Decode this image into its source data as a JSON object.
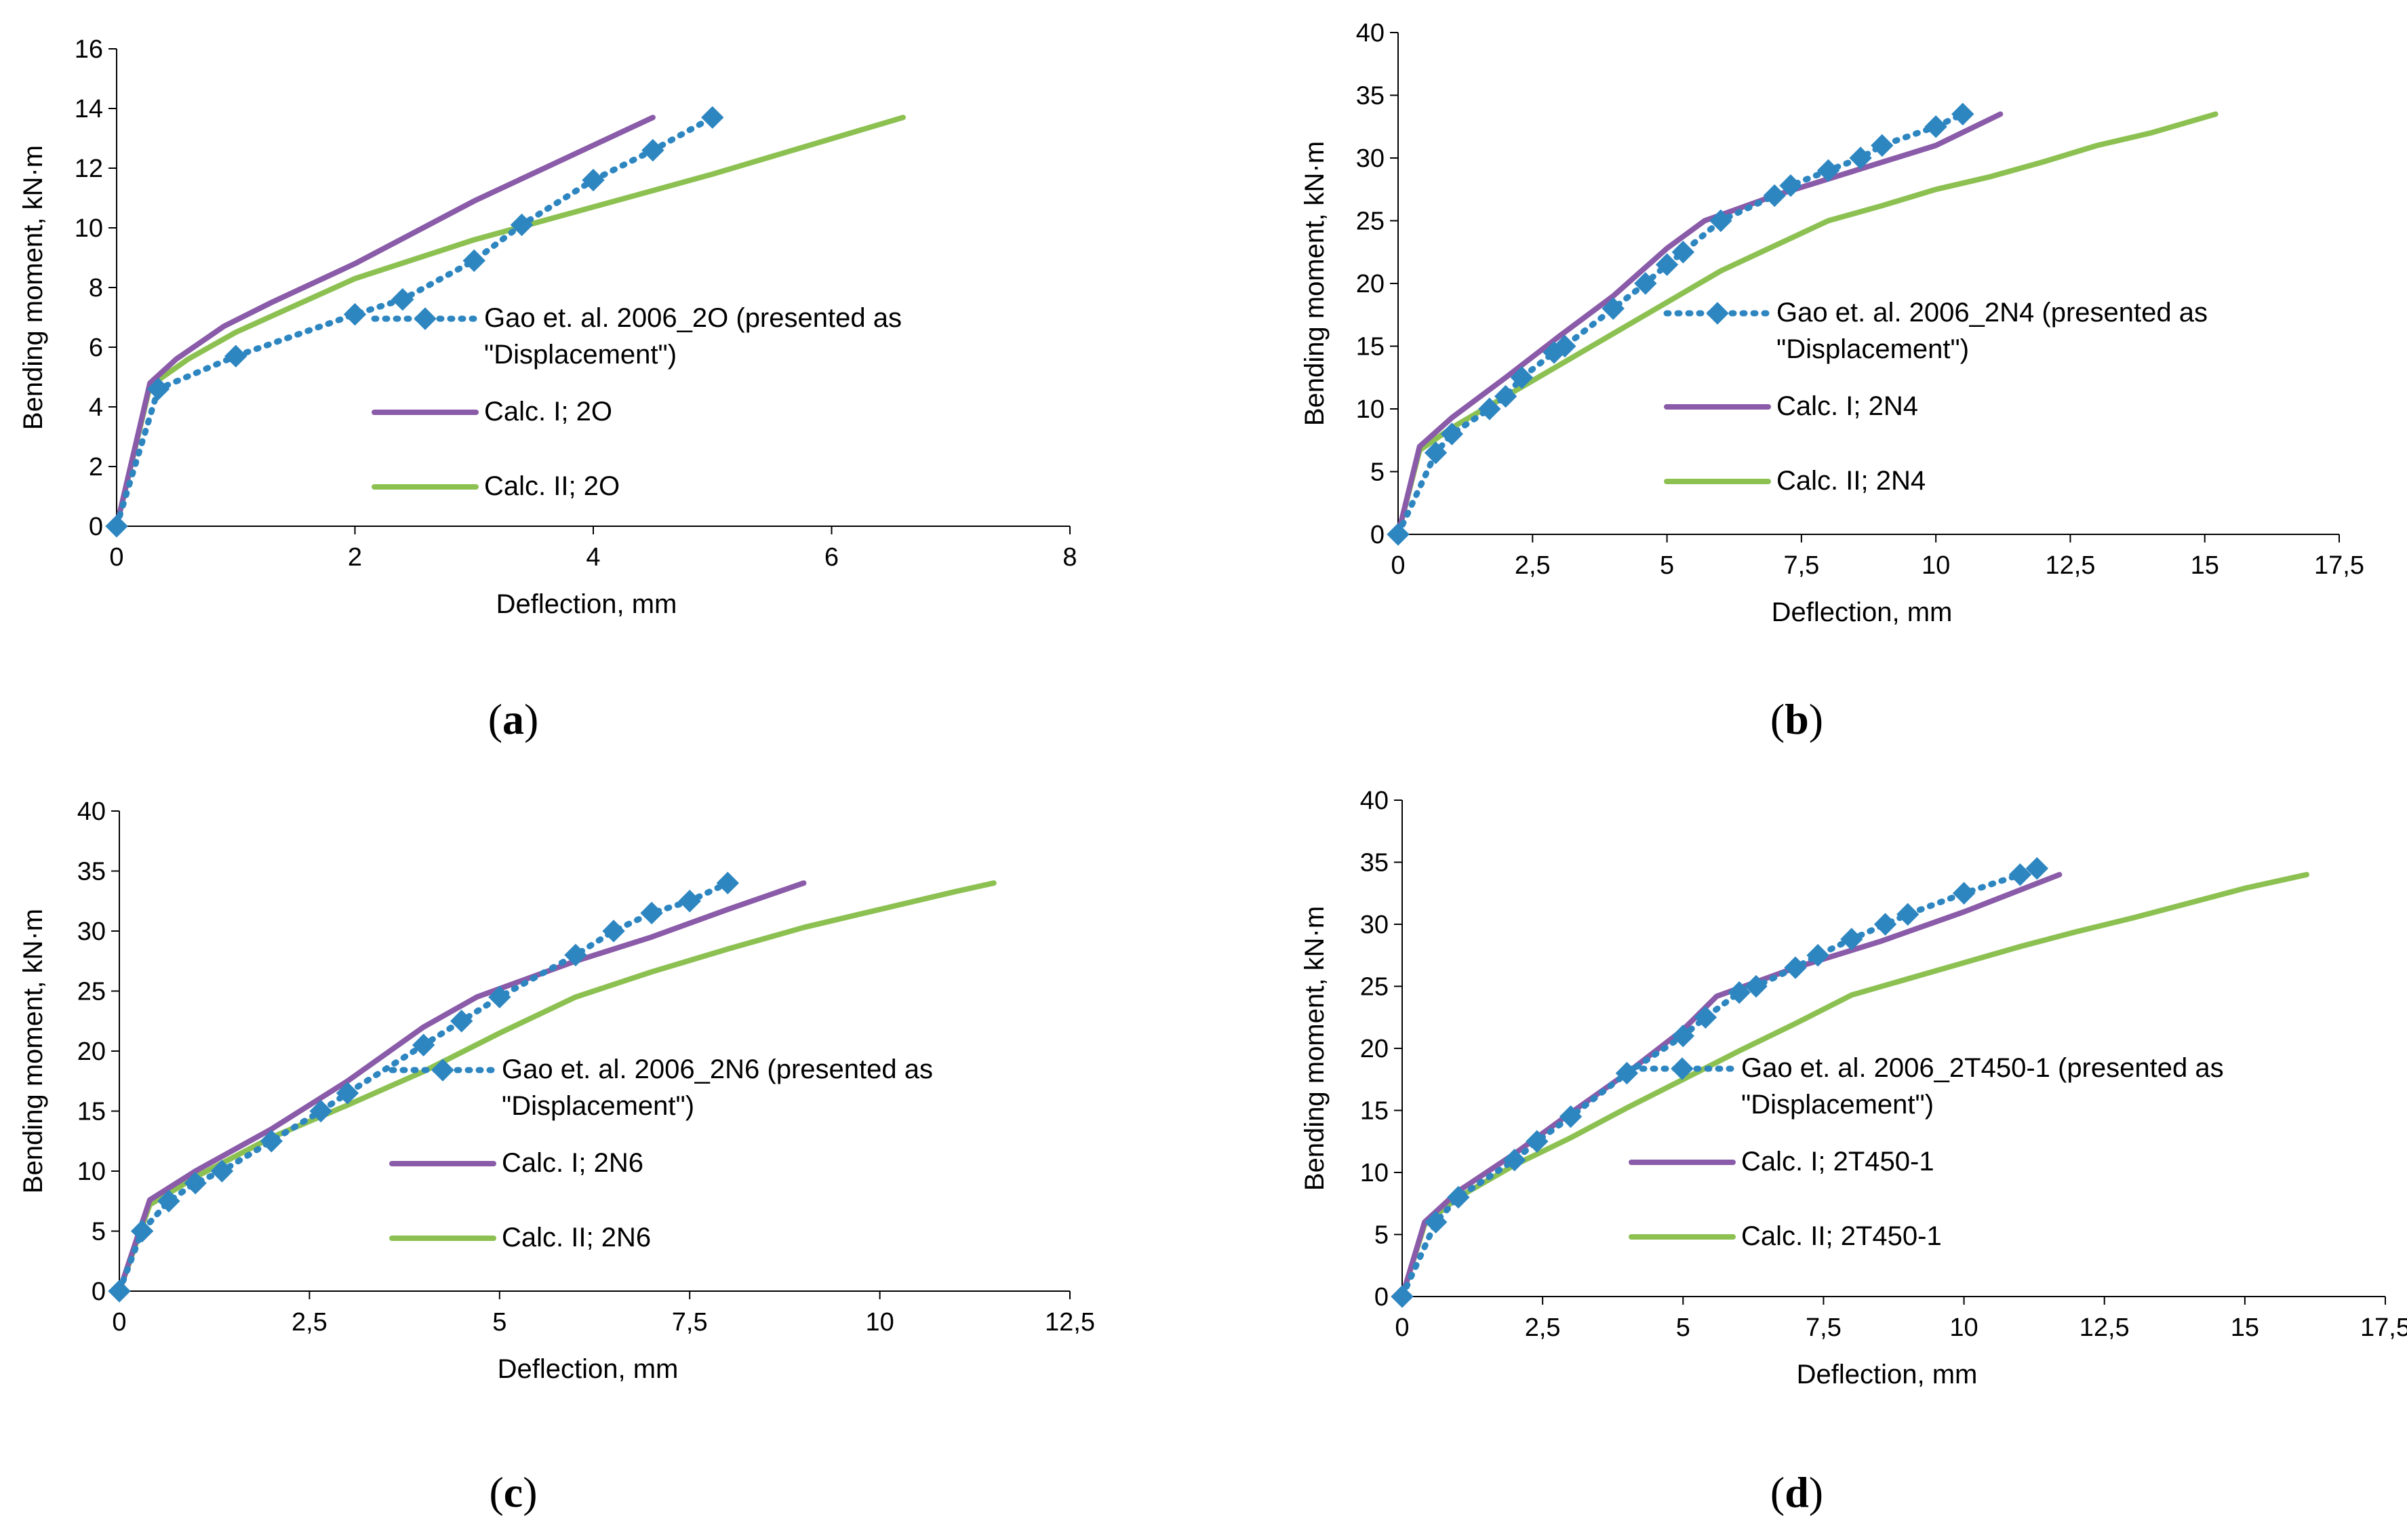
{
  "colors": {
    "experimental": "#2E86C1",
    "calc1": "#8A5BA8",
    "calc2": "#8CC152",
    "axis": "#000000"
  },
  "chart_data": [
    {
      "id": "a",
      "type": "line",
      "panel_label": "a",
      "xlabel": "Deflection, mm",
      "ylabel": "Bending moment, kN·m",
      "xlim": [
        0,
        8
      ],
      "ylim": [
        0,
        16
      ],
      "xticks": [
        0,
        2,
        4,
        6,
        8
      ],
      "xtick_labels": [
        "0",
        "2",
        "4",
        "6",
        "8"
      ],
      "yticks": [
        0,
        2,
        4,
        6,
        8,
        10,
        12,
        14,
        16
      ],
      "ytick_labels": [
        "0",
        "2",
        "4",
        "6",
        "8",
        "10",
        "12",
        "14",
        "16"
      ],
      "legend": {
        "position": "center-right",
        "entries": [
          {
            "series": 0,
            "lines": [
              "Gao et. al. 2006_2O (presented as",
              "\"Displacement\")"
            ]
          },
          {
            "series": 1,
            "lines": [
              "Calc. I; 2O"
            ]
          },
          {
            "series": 2,
            "lines": [
              "Calc. II; 2O"
            ]
          }
        ]
      },
      "series": [
        {
          "name": "Gao et. al. 2006_2O (presented as \"Displacement\")",
          "style": "experimental",
          "x": [
            0,
            0.35,
            1.0,
            2.0,
            2.4,
            3.0,
            3.4,
            4.0,
            4.5,
            5.0
          ],
          "y": [
            0,
            4.6,
            5.7,
            7.1,
            7.6,
            8.9,
            10.1,
            11.6,
            12.6,
            13.7
          ]
        },
        {
          "name": "Calc. I; 2O",
          "style": "calc1",
          "x": [
            0,
            0.28,
            0.5,
            0.9,
            1.3,
            2.0,
            3.0,
            4.5
          ],
          "y": [
            0,
            4.8,
            5.6,
            6.7,
            7.5,
            8.8,
            10.9,
            13.7
          ]
        },
        {
          "name": "Calc. II; 2O",
          "style": "calc2",
          "x": [
            0,
            0.28,
            0.6,
            1.0,
            1.5,
            2.0,
            3.0,
            4.0,
            5.0,
            6.6
          ],
          "y": [
            0,
            4.7,
            5.6,
            6.5,
            7.4,
            8.3,
            9.6,
            10.7,
            11.8,
            13.7
          ]
        }
      ]
    },
    {
      "id": "b",
      "type": "line",
      "panel_label": "b",
      "xlabel": "Deflection, mm",
      "ylabel": "Bending moment, kN·m",
      "xlim": [
        0,
        17.5
      ],
      "ylim": [
        0,
        40
      ],
      "xticks": [
        0,
        2.5,
        5,
        7.5,
        10,
        12.5,
        15,
        17.5
      ],
      "xtick_labels": [
        "0",
        "2,5",
        "5",
        "7,5",
        "10",
        "12,5",
        "15",
        "17,5"
      ],
      "yticks": [
        0,
        5,
        10,
        15,
        20,
        25,
        30,
        35,
        40
      ],
      "ytick_labels": [
        "0",
        "5",
        "10",
        "15",
        "20",
        "25",
        "30",
        "35",
        "40"
      ],
      "legend": {
        "position": "center-right",
        "entries": [
          {
            "series": 0,
            "lines": [
              "Gao et. al. 2006_2N4 (presented as",
              "\"Displacement\")"
            ]
          },
          {
            "series": 1,
            "lines": [
              "Calc. I; 2N4"
            ]
          },
          {
            "series": 2,
            "lines": [
              "Calc. II; 2N4"
            ]
          }
        ]
      },
      "series": [
        {
          "name": "Gao et. al. 2006_2N4 (presented as \"Displacement\")",
          "style": "experimental",
          "x": [
            0,
            0.7,
            1.0,
            1.7,
            2.0,
            2.3,
            2.9,
            3.1,
            4.0,
            4.6,
            5.0,
            5.3,
            6.0,
            7.0,
            7.3,
            8.0,
            8.6,
            9.0,
            10.0,
            10.5
          ],
          "y": [
            0,
            6.5,
            8.0,
            10.0,
            11.0,
            12.5,
            14.5,
            15.0,
            18.0,
            20.0,
            21.5,
            22.5,
            25.0,
            27.0,
            27.8,
            29.0,
            30.0,
            31.0,
            32.5,
            33.5
          ]
        },
        {
          "name": "Calc. I; 2N4",
          "style": "calc1",
          "x": [
            0,
            0.4,
            1.0,
            2.0,
            3.0,
            4.0,
            5.0,
            5.7,
            7.0,
            8.5,
            10.0,
            11.2
          ],
          "y": [
            0,
            7.0,
            9.3,
            12.5,
            15.8,
            19.0,
            22.8,
            25.0,
            27.0,
            29.0,
            31.0,
            33.5
          ]
        },
        {
          "name": "Calc. II; 2N4",
          "style": "calc2",
          "x": [
            0,
            0.4,
            1.0,
            2.0,
            3.0,
            4.0,
            5.0,
            6.0,
            7.0,
            8.0,
            9.0,
            10.0,
            11.0,
            12.0,
            13.0,
            14.0,
            15.2
          ],
          "y": [
            0,
            6.7,
            8.5,
            11.0,
            13.5,
            16.0,
            18.5,
            21.0,
            23.0,
            25.0,
            26.2,
            27.5,
            28.5,
            29.7,
            31.0,
            32.0,
            33.5
          ]
        }
      ]
    },
    {
      "id": "c",
      "type": "line",
      "panel_label": "c",
      "xlabel": "Deflection, mm",
      "ylabel": "Bending moment, kN·m",
      "xlim": [
        0,
        12.5
      ],
      "ylim": [
        0,
        40
      ],
      "xticks": [
        0,
        2.5,
        5,
        7.5,
        10,
        12.5
      ],
      "xtick_labels": [
        "0",
        "2,5",
        "5",
        "7,5",
        "10",
        "12,5"
      ],
      "yticks": [
        0,
        5,
        10,
        15,
        20,
        25,
        30,
        35,
        40
      ],
      "ytick_labels": [
        "0",
        "5",
        "10",
        "15",
        "20",
        "25",
        "30",
        "35",
        "40"
      ],
      "legend": {
        "position": "center-right",
        "entries": [
          {
            "series": 0,
            "lines": [
              "Gao et. al. 2006_2N6 (presented as",
              "\"Displacement\")"
            ]
          },
          {
            "series": 1,
            "lines": [
              "Calc. I; 2N6"
            ]
          },
          {
            "series": 2,
            "lines": [
              "Calc. II; 2N6"
            ]
          }
        ]
      },
      "series": [
        {
          "name": "Gao et. al. 2006_2N6 (presented as \"Displacement\")",
          "style": "experimental",
          "x": [
            0,
            0.3,
            0.65,
            1.0,
            1.35,
            2.0,
            2.65,
            3.0,
            4.0,
            4.5,
            5.0,
            6.0,
            6.5,
            7.0,
            7.5,
            8.0
          ],
          "y": [
            0,
            5.0,
            7.5,
            9.0,
            10.0,
            12.5,
            15.0,
            16.5,
            20.5,
            22.5,
            24.5,
            28.0,
            30.0,
            31.5,
            32.5,
            34.0
          ]
        },
        {
          "name": "Calc. I; 2N6",
          "style": "calc1",
          "x": [
            0,
            0.4,
            1.0,
            2.0,
            3.0,
            4.0,
            4.7,
            6.0,
            7.0,
            8.0,
            9.0
          ],
          "y": [
            0,
            7.6,
            10.0,
            13.5,
            17.5,
            22.0,
            24.5,
            27.5,
            29.5,
            31.8,
            34.0
          ]
        },
        {
          "name": "Calc. II; 2N6",
          "style": "calc2",
          "x": [
            0,
            0.4,
            1.0,
            2.0,
            3.0,
            4.0,
            5.0,
            6.0,
            7.0,
            8.0,
            9.0,
            10.0,
            11.0,
            11.5
          ],
          "y": [
            0,
            7.2,
            9.5,
            12.8,
            15.5,
            18.3,
            21.5,
            24.5,
            26.6,
            28.5,
            30.3,
            31.8,
            33.3,
            34.0
          ]
        }
      ]
    },
    {
      "id": "d",
      "type": "line",
      "panel_label": "d",
      "xlabel": "Deflection, mm",
      "ylabel": "Bending moment, kN·m",
      "xlim": [
        0,
        17.5
      ],
      "ylim": [
        0,
        40
      ],
      "xticks": [
        0,
        2.5,
        5,
        7.5,
        10,
        12.5,
        15,
        17.5
      ],
      "xtick_labels": [
        "0",
        "2,5",
        "5",
        "7,5",
        "10",
        "12,5",
        "15",
        "17,5"
      ],
      "yticks": [
        0,
        5,
        10,
        15,
        20,
        25,
        30,
        35,
        40
      ],
      "ytick_labels": [
        "0",
        "5",
        "10",
        "15",
        "20",
        "25",
        "30",
        "35",
        "40"
      ],
      "legend": {
        "position": "center-right",
        "entries": [
          {
            "series": 0,
            "lines": [
              "Gao et. al. 2006_2T450-1 (presented as",
              "\"Displacement\")"
            ]
          },
          {
            "series": 1,
            "lines": [
              "Calc. I; 2T450-1"
            ]
          },
          {
            "series": 2,
            "lines": [
              "Calc. II; 2T450-1"
            ]
          }
        ]
      },
      "series": [
        {
          "name": "Gao et. al. 2006_2T450-1 (presented as \"Displacement\")",
          "style": "experimental",
          "x": [
            0,
            0.6,
            1.0,
            2.0,
            2.4,
            3.0,
            4.0,
            5.0,
            5.4,
            6.0,
            6.3,
            7.0,
            7.4,
            8.0,
            8.6,
            9.0,
            10.0,
            11.0,
            11.3
          ],
          "y": [
            0,
            6.0,
            8.0,
            11.0,
            12.5,
            14.5,
            18.0,
            21.0,
            22.5,
            24.5,
            25.0,
            26.5,
            27.5,
            28.8,
            30.0,
            30.8,
            32.5,
            34.0,
            34.5
          ]
        },
        {
          "name": "Calc. I; 2T450-1",
          "style": "calc1",
          "x": [
            0,
            0.4,
            1.0,
            2.0,
            3.0,
            4.0,
            5.0,
            5.6,
            7.0,
            8.5,
            10.0,
            11.7
          ],
          "y": [
            0,
            6.0,
            8.5,
            11.5,
            14.8,
            18.0,
            21.5,
            24.2,
            26.5,
            28.6,
            31.0,
            34.0
          ]
        },
        {
          "name": "Calc. II; 2T450-1",
          "style": "calc2",
          "x": [
            0,
            0.4,
            1.0,
            2.0,
            3.0,
            4.0,
            5.0,
            6.0,
            7.0,
            8.0,
            9.0,
            10.0,
            11.0,
            12.0,
            13.0,
            14.0,
            15.0,
            16.1
          ],
          "y": [
            0,
            5.8,
            8.0,
            10.6,
            12.8,
            15.2,
            17.5,
            19.8,
            22.0,
            24.3,
            25.6,
            26.9,
            28.2,
            29.4,
            30.5,
            31.7,
            32.9,
            34.0
          ]
        }
      ]
    }
  ]
}
